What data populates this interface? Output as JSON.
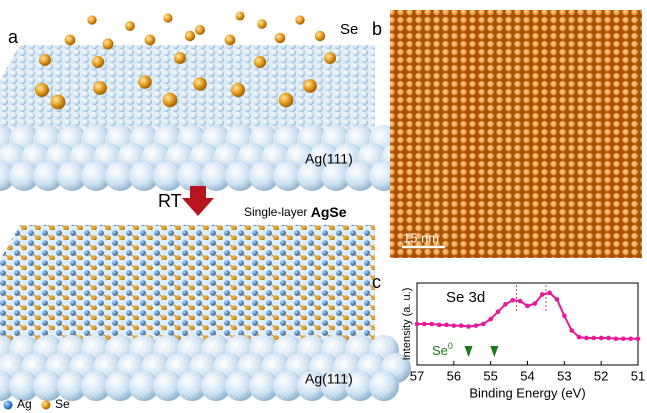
{
  "panels": {
    "a": {
      "label": "a",
      "se_label": "Se",
      "substrate_top": "Ag(111)",
      "arrow_label": "RT",
      "product_prefix": "Single-layer",
      "product_name": "AgSe",
      "substrate_bottom": "Ag(111)",
      "legend": [
        "Ag",
        "Se"
      ]
    },
    "b": {
      "label": "b",
      "scale_bar": "15 nm"
    },
    "c": {
      "label": "c"
    }
  },
  "chart_data": {
    "type": "line",
    "annotation": "Se 3d",
    "se0_symbol": "Se",
    "se0_superscript": "0",
    "xlabel": "Binding Energy (eV)",
    "ylabel": "Intensity (a. u.)",
    "x": [
      57,
      56.8,
      56.6,
      56.4,
      56.2,
      56,
      55.8,
      55.6,
      55.4,
      55.2,
      55,
      54.8,
      54.6,
      54.4,
      54.2,
      54,
      53.8,
      53.6,
      53.4,
      53.2,
      53,
      52.8,
      52.6,
      52.4,
      52.2,
      52,
      51.8,
      51.6,
      51.4,
      51.2,
      51
    ],
    "values": [
      0.5,
      0.5,
      0.5,
      0.49,
      0.49,
      0.48,
      0.48,
      0.47,
      0.48,
      0.5,
      0.56,
      0.65,
      0.74,
      0.79,
      0.78,
      0.72,
      0.75,
      0.86,
      0.88,
      0.8,
      0.6,
      0.42,
      0.34,
      0.33,
      0.33,
      0.33,
      0.33,
      0.32,
      0.32,
      0.32,
      0.32
    ],
    "color": "#e8179a",
    "peak_markers": [
      54.3,
      53.5
    ],
    "peak_marker_color": "#e0405a",
    "se0_markers": [
      55.6,
      54.9
    ],
    "se0_marker_color": "#1a7a1a",
    "xlim": [
      57,
      51
    ],
    "ylim": [
      0,
      1
    ],
    "xticks": [
      57,
      56,
      55,
      54,
      53,
      52,
      51
    ]
  }
}
